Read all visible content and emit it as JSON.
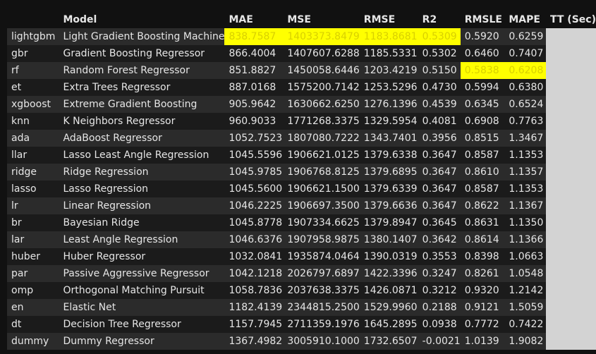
{
  "table": {
    "columns": [
      "",
      "Model",
      "MAE",
      "MSE",
      "RMSE",
      "R2",
      "RMSLE",
      "MAPE",
      "TT (Sec)"
    ],
    "rows": [
      {
        "id": "lightgbm",
        "model": "Light Gradient Boosting Machine",
        "mae": "838.7587",
        "mse": "1403373.8479",
        "rmse": "1183.8681",
        "r2": "0.5309",
        "rmsle": "0.5920",
        "mape": "0.6259",
        "tt": ""
      },
      {
        "id": "gbr",
        "model": "Gradient Boosting Regressor",
        "mae": "866.4004",
        "mse": "1407607.6288",
        "rmse": "1185.5331",
        "r2": "0.5302",
        "rmsle": "0.6460",
        "mape": "0.7407",
        "tt": ""
      },
      {
        "id": "rf",
        "model": "Random Forest Regressor",
        "mae": "851.8827",
        "mse": "1450058.6446",
        "rmse": "1203.4219",
        "r2": "0.5150",
        "rmsle": "0.5838",
        "mape": "0.6208",
        "tt": ""
      },
      {
        "id": "et",
        "model": "Extra Trees Regressor",
        "mae": "887.0168",
        "mse": "1575200.7142",
        "rmse": "1253.5296",
        "r2": "0.4730",
        "rmsle": "0.5994",
        "mape": "0.6380",
        "tt": ""
      },
      {
        "id": "xgboost",
        "model": "Extreme Gradient Boosting",
        "mae": "905.9642",
        "mse": "1630662.6250",
        "rmse": "1276.1396",
        "r2": "0.4539",
        "rmsle": "0.6345",
        "mape": "0.6524",
        "tt": ""
      },
      {
        "id": "knn",
        "model": "K Neighbors Regressor",
        "mae": "960.9033",
        "mse": "1771268.3375",
        "rmse": "1329.5954",
        "r2": "0.4081",
        "rmsle": "0.6908",
        "mape": "0.7763",
        "tt": ""
      },
      {
        "id": "ada",
        "model": "AdaBoost Regressor",
        "mae": "1052.7523",
        "mse": "1807080.7222",
        "rmse": "1343.7401",
        "r2": "0.3956",
        "rmsle": "0.8515",
        "mape": "1.3467",
        "tt": ""
      },
      {
        "id": "llar",
        "model": "Lasso Least Angle Regression",
        "mae": "1045.5596",
        "mse": "1906621.0125",
        "rmse": "1379.6338",
        "r2": "0.3647",
        "rmsle": "0.8587",
        "mape": "1.1353",
        "tt": ""
      },
      {
        "id": "ridge",
        "model": "Ridge Regression",
        "mae": "1045.9785",
        "mse": "1906768.8125",
        "rmse": "1379.6895",
        "r2": "0.3647",
        "rmsle": "0.8610",
        "mape": "1.1357",
        "tt": ""
      },
      {
        "id": "lasso",
        "model": "Lasso Regression",
        "mae": "1045.5600",
        "mse": "1906621.1500",
        "rmse": "1379.6339",
        "r2": "0.3647",
        "rmsle": "0.8587",
        "mape": "1.1353",
        "tt": ""
      },
      {
        "id": "lr",
        "model": "Linear Regression",
        "mae": "1046.2225",
        "mse": "1906697.3500",
        "rmse": "1379.6636",
        "r2": "0.3647",
        "rmsle": "0.8622",
        "mape": "1.1367",
        "tt": ""
      },
      {
        "id": "br",
        "model": "Bayesian Ridge",
        "mae": "1045.8778",
        "mse": "1907334.6625",
        "rmse": "1379.8947",
        "r2": "0.3645",
        "rmsle": "0.8631",
        "mape": "1.1350",
        "tt": ""
      },
      {
        "id": "lar",
        "model": "Least Angle Regression",
        "mae": "1046.6376",
        "mse": "1907958.9875",
        "rmse": "1380.1407",
        "r2": "0.3642",
        "rmsle": "0.8614",
        "mape": "1.1366",
        "tt": ""
      },
      {
        "id": "huber",
        "model": "Huber Regressor",
        "mae": "1032.0841",
        "mse": "1935874.0464",
        "rmse": "1390.0319",
        "r2": "0.3553",
        "rmsle": "0.8398",
        "mape": "1.0663",
        "tt": ""
      },
      {
        "id": "par",
        "model": "Passive Aggressive Regressor",
        "mae": "1042.1218",
        "mse": "2026797.6897",
        "rmse": "1422.3396",
        "r2": "0.3247",
        "rmsle": "0.8261",
        "mape": "1.0548",
        "tt": ""
      },
      {
        "id": "omp",
        "model": "Orthogonal Matching Pursuit",
        "mae": "1058.7836",
        "mse": "2037638.3375",
        "rmse": "1426.0871",
        "r2": "0.3212",
        "rmsle": "0.9320",
        "mape": "1.2142",
        "tt": ""
      },
      {
        "id": "en",
        "model": "Elastic Net",
        "mae": "1182.4139",
        "mse": "2344815.2500",
        "rmse": "1529.9960",
        "r2": "0.2188",
        "rmsle": "0.9121",
        "mape": "1.5059",
        "tt": ""
      },
      {
        "id": "dt",
        "model": "Decision Tree Regressor",
        "mae": "1157.7945",
        "mse": "2711359.1976",
        "rmse": "1645.2895",
        "r2": "0.0938",
        "rmsle": "0.7772",
        "mape": "0.7422",
        "tt": ""
      },
      {
        "id": "dummy",
        "model": "Dummy Regressor",
        "mae": "1367.4982",
        "mse": "3005910.1000",
        "rmse": "1732.6507",
        "r2": "-0.0021",
        "rmsle": "1.0139",
        "mape": "1.9082",
        "tt": ""
      }
    ],
    "highlights": [
      {
        "row": 0,
        "cols": [
          "mae",
          "mse",
          "rmse",
          "r2"
        ]
      },
      {
        "row": 2,
        "cols": [
          "rmsle",
          "mape"
        ]
      }
    ]
  },
  "colors": {
    "background": "#111111",
    "row_odd": "#2b2b2b",
    "row_even": "#1b1b1b",
    "highlight": "#ffff00",
    "tt_column": "#d3d3d3",
    "text": "#e6e6e6"
  }
}
